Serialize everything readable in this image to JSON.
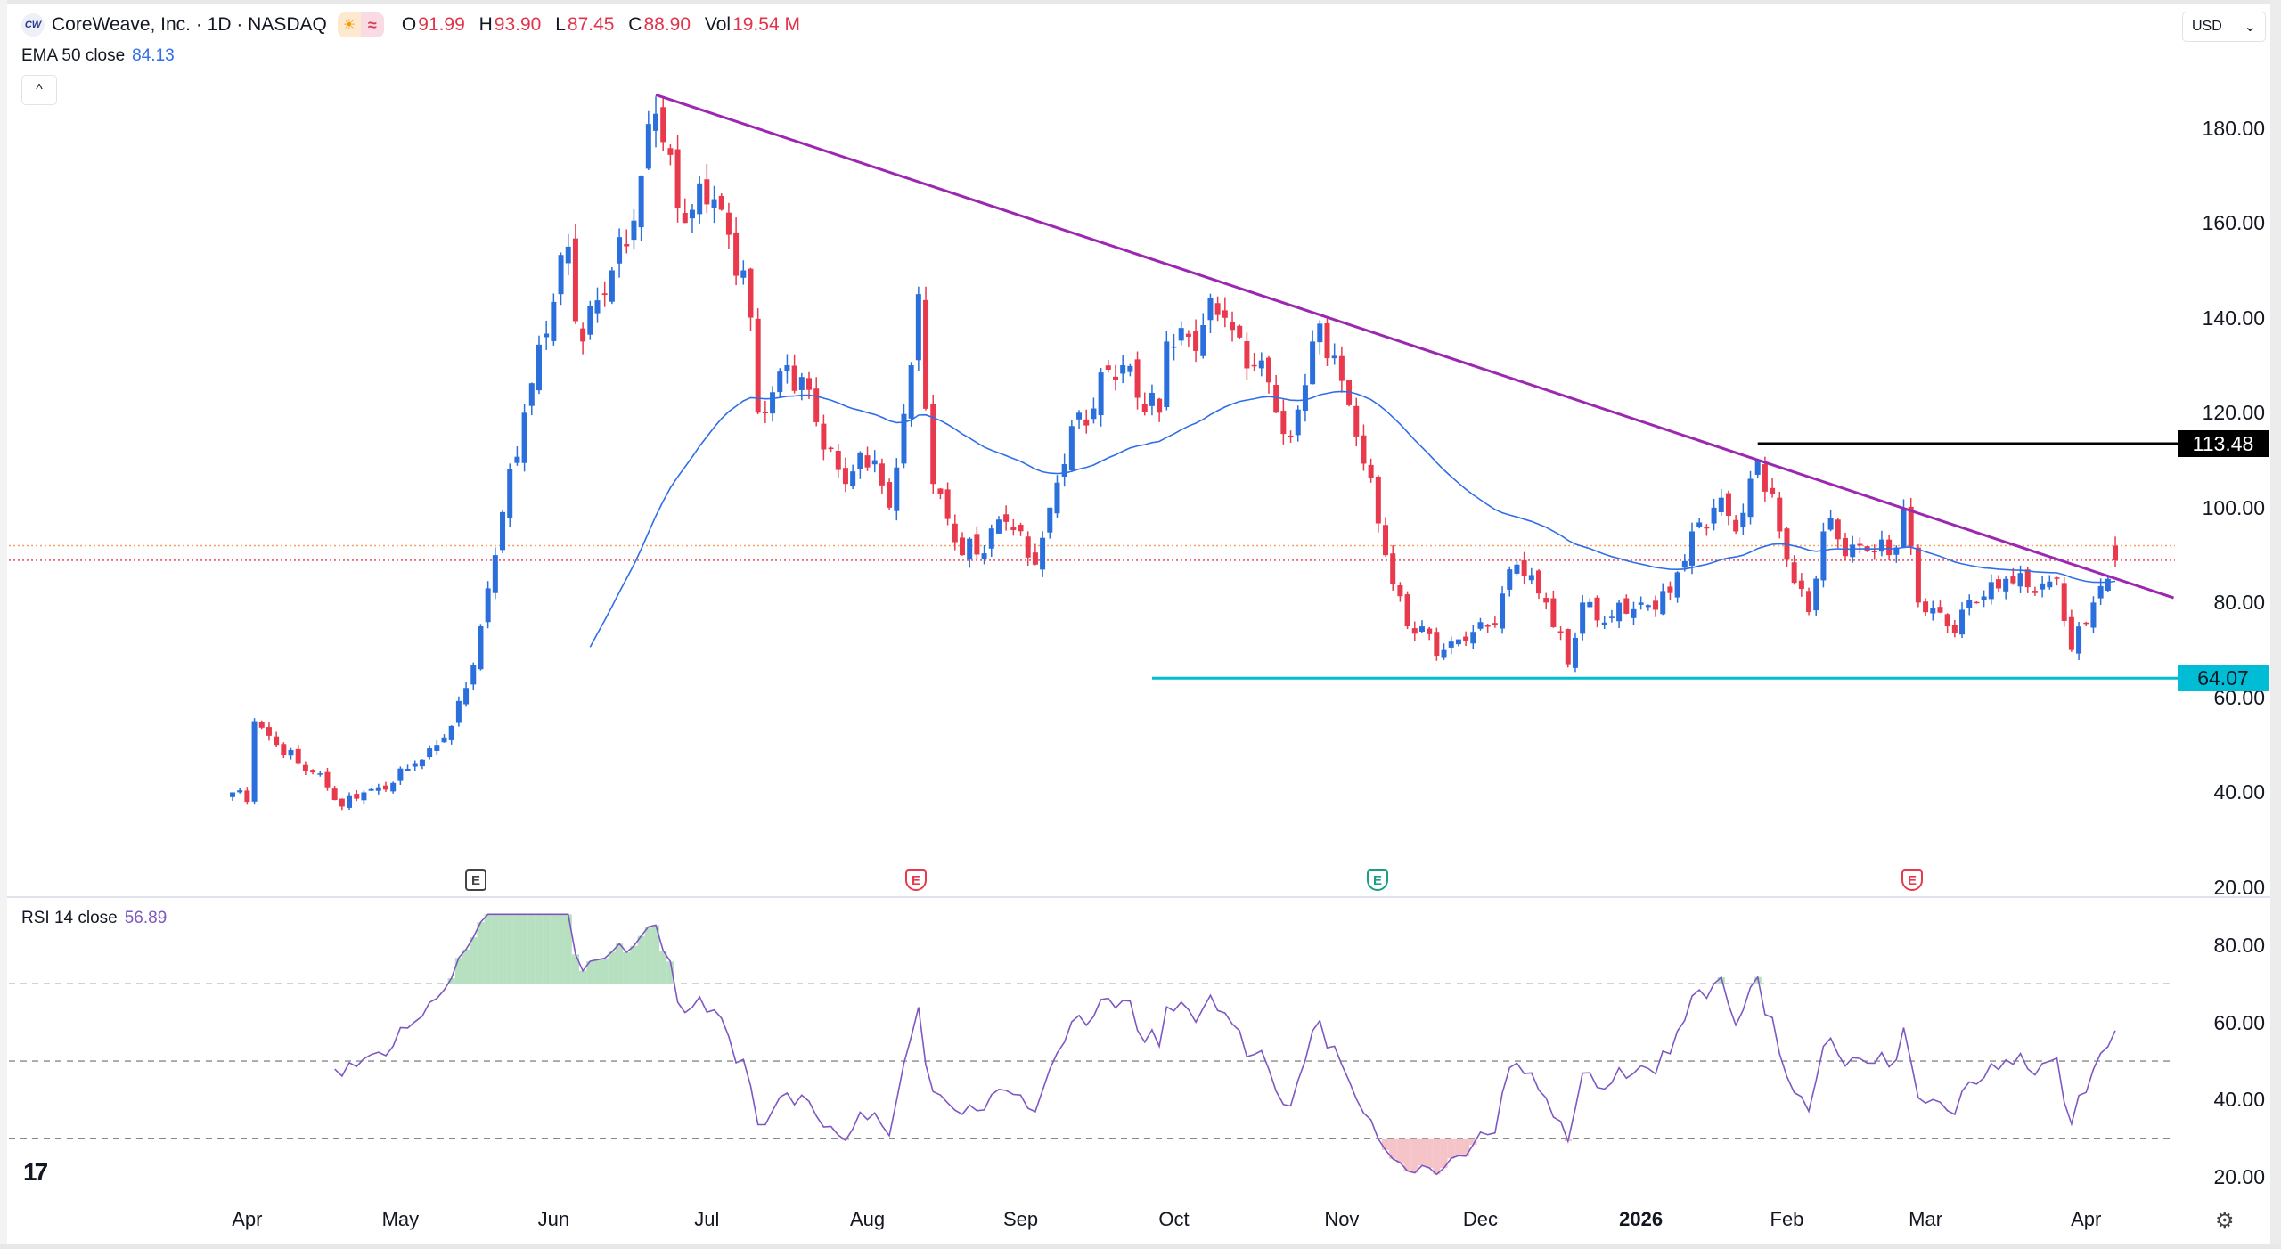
{
  "header": {
    "logo_text": "CW",
    "title": "CoreWeave, Inc. · 1D · NASDAQ",
    "ohlc": [
      {
        "key": "O",
        "value": "91.99"
      },
      {
        "key": "H",
        "value": "93.90"
      },
      {
        "key": "L",
        "value": "87.45"
      },
      {
        "key": "C",
        "value": "88.90"
      },
      {
        "key": "Vol",
        "value": "19.54 M"
      }
    ],
    "currency": "USD",
    "collapse_icon": "^"
  },
  "ema_legend": {
    "label": "EMA 50 close",
    "value": "84.13"
  },
  "rsi_legend": {
    "label": "RSI 14 close",
    "value": "56.89"
  },
  "earnings_markers": [
    "E",
    "E",
    "E",
    "E"
  ],
  "colors": {
    "up": "#2a6fdb",
    "down": "#e8394d",
    "ema": "#2f6ee8",
    "trendline": "#9c27b0",
    "support": "#00bcd4",
    "resistance": "#000000",
    "rsi": "#7e57c2"
  },
  "chart_data": {
    "type": "candlestick",
    "title": "CoreWeave, Inc. · 1D · NASDAQ",
    "price_axis": {
      "ticks": [
        "180.00",
        "160.00",
        "140.00",
        "120.00",
        "100.00",
        "80.00",
        "60.00",
        "40.00",
        "20.00"
      ],
      "range": [
        20,
        190
      ]
    },
    "rsi_axis": {
      "ticks": [
        "80.00",
        "60.00",
        "40.00",
        "20.00"
      ],
      "range": [
        15,
        90
      ],
      "bands": [
        70,
        50,
        30
      ]
    },
    "time_axis": [
      {
        "label": "Apr",
        "day": 2
      },
      {
        "label": "May",
        "day": 23
      },
      {
        "label": "Jun",
        "day": 44
      },
      {
        "label": "Jul",
        "day": 65
      },
      {
        "label": "Aug",
        "day": 87
      },
      {
        "label": "Sep",
        "day": 108
      },
      {
        "label": "Oct",
        "day": 129
      },
      {
        "label": "Nov",
        "day": 152
      },
      {
        "label": "Dec",
        "day": 171
      },
      {
        "label": "2026",
        "day": 193,
        "bold": true
      },
      {
        "label": "Feb",
        "day": 213
      },
      {
        "label": "Mar",
        "day": 232
      },
      {
        "label": "Apr",
        "day": 254
      }
    ],
    "close_anchors_day_price": [
      [
        0,
        40
      ],
      [
        2,
        38
      ],
      [
        3,
        55
      ],
      [
        6,
        50
      ],
      [
        9,
        46
      ],
      [
        12,
        44
      ],
      [
        15,
        37
      ],
      [
        18,
        40
      ],
      [
        22,
        42
      ],
      [
        25,
        46
      ],
      [
        28,
        50
      ],
      [
        30,
        54
      ],
      [
        32,
        62
      ],
      [
        34,
        75
      ],
      [
        36,
        90
      ],
      [
        40,
        120
      ],
      [
        46,
        155
      ],
      [
        48,
        135
      ],
      [
        52,
        150
      ],
      [
        56,
        170
      ],
      [
        58,
        183
      ],
      [
        62,
        160
      ],
      [
        66,
        165
      ],
      [
        70,
        150
      ],
      [
        72,
        120
      ],
      [
        76,
        130
      ],
      [
        80,
        118
      ],
      [
        84,
        105
      ],
      [
        88,
        110
      ],
      [
        90,
        100
      ],
      [
        93,
        130
      ],
      [
        94,
        145
      ],
      [
        96,
        105
      ],
      [
        100,
        90
      ],
      [
        106,
        97
      ],
      [
        110,
        88
      ],
      [
        112,
        100
      ],
      [
        116,
        120
      ],
      [
        122,
        130
      ],
      [
        127,
        120
      ],
      [
        128,
        135
      ],
      [
        136,
        140
      ],
      [
        140,
        130
      ],
      [
        143,
        120
      ],
      [
        145,
        115
      ],
      [
        148,
        135
      ],
      [
        151,
        132
      ],
      [
        154,
        115
      ],
      [
        158,
        90
      ],
      [
        161,
        75
      ],
      [
        166,
        70
      ],
      [
        169,
        72
      ],
      [
        172,
        75
      ],
      [
        176,
        88
      ],
      [
        180,
        80
      ],
      [
        183,
        67
      ],
      [
        185,
        80
      ],
      [
        189,
        77
      ],
      [
        193,
        80
      ],
      [
        197,
        82
      ],
      [
        200,
        95
      ],
      [
        203,
        100
      ],
      [
        206,
        95
      ],
      [
        209,
        110
      ],
      [
        212,
        95
      ],
      [
        216,
        78
      ],
      [
        218,
        95
      ],
      [
        223,
        92
      ],
      [
        227,
        90
      ],
      [
        229,
        100
      ],
      [
        231,
        80
      ],
      [
        235,
        75
      ],
      [
        239,
        80
      ],
      [
        243,
        85
      ],
      [
        247,
        82
      ],
      [
        250,
        85
      ],
      [
        252,
        70
      ],
      [
        255,
        80
      ],
      [
        257,
        85
      ]
    ],
    "last_candle": {
      "day": 258,
      "open": 91.99,
      "high": 93.9,
      "low": 87.45,
      "close": 88.9
    },
    "indicators": {
      "ema_period": 50,
      "rsi_period": 14
    },
    "annotations": {
      "trendline": {
        "from": {
          "day": 58,
          "price": 187
        },
        "to": {
          "day": 266,
          "price": 81
        }
      },
      "resistance": {
        "price": 113.48,
        "label": "113.48",
        "from_day": 209
      },
      "support": {
        "price": 64.07,
        "label": "64.07",
        "from_day": 126
      },
      "last_price_lines": [
        91.99,
        88.9
      ]
    }
  }
}
